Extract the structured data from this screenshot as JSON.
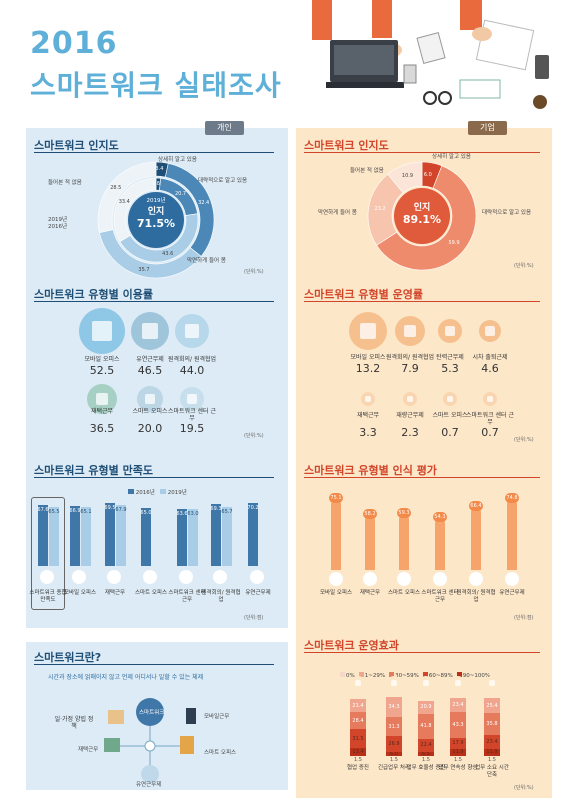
{
  "header": {
    "year": "2016",
    "title": "스마트워크 실태조사"
  },
  "tags": {
    "left": "개인",
    "right": "기업"
  },
  "left": {
    "awareness": {
      "title": "스마트워크 인지도",
      "labels": {
        "detail": "상세히 알고 있음",
        "roughly": "대략적으로 알고 있음",
        "heard": "들어본 적 없음",
        "vaguely": "막연하게 들어 봄",
        "y2019": "2019년",
        "y2016": "2016년"
      },
      "center_year": "2019년",
      "center_word": "인지",
      "center_value": "71.5%",
      "outer": [
        {
          "value": "3.4",
          "pct": 3.4,
          "color": "#1e4d75"
        },
        {
          "value": "32.4",
          "pct": 32.4,
          "color": "#4b88b8"
        },
        {
          "value": "35.7",
          "pct": 35.7,
          "color": "#a9cde6"
        },
        {
          "value": "28.5",
          "pct": 28.5,
          "color": "#eef3f7"
        }
      ],
      "inner": [
        {
          "value": "1.8",
          "pct": 1.8,
          "color": "#1e4d75"
        },
        {
          "value": "20.7",
          "pct": 20.7,
          "color": "#4b88b8"
        },
        {
          "value": "43.6",
          "pct": 43.6,
          "color": "#a9cde6"
        },
        {
          "value": "33.4",
          "pct": 33.4,
          "color": "#eef3f7"
        }
      ],
      "unit": "(단위:%)"
    },
    "usage": {
      "title": "스마트워크 유형별 이용률",
      "items": [
        {
          "label": "모바일 오피스",
          "value": "52.5",
          "icon": "mobile-icon"
        },
        {
          "label": "유연근무제",
          "value": "46.5",
          "icon": "clock-icon"
        },
        {
          "label": "원격회의/ 원격협업",
          "value": "44.0",
          "icon": "meeting-icon"
        },
        {
          "label": "재택근무",
          "value": "36.5",
          "icon": "home-icon"
        },
        {
          "label": "스마트 오피스",
          "value": "20.0",
          "icon": "office-icon"
        },
        {
          "label": "스마트워크 센터 근무",
          "value": "19.5",
          "icon": "center-icon"
        }
      ],
      "unit": "(단위:%)"
    },
    "satisfaction": {
      "title": "스마트워크 유형별 만족도",
      "legend_2016": "2016년",
      "legend_2019": "2019년",
      "unit": "(단위:점)",
      "groups": [
        {
          "label": "스마트워크 종합만족도",
          "v2016": "67.6",
          "v2019": "65.5"
        },
        {
          "label": "모바일 오피스",
          "v2016": "66.9",
          "v2019": "65.1"
        },
        {
          "label": "재택근무",
          "v2016": "69.5",
          "v2019": "67.9"
        },
        {
          "label": "스마트 오피스",
          "v2016": "65.0",
          "v2019": ""
        },
        {
          "label": "스마트워크 센터 근무",
          "v2016": "63.6",
          "v2019": "63.0"
        },
        {
          "label": "원격회의/ 원격협업",
          "v2016": "69.3",
          "v2019": "65.7"
        },
        {
          "label": "유연근무제",
          "v2016": "70.2",
          "v2019": ""
        }
      ]
    },
    "whatis": {
      "title": "스마트워크란?",
      "subtitle": "시간과 장소에 얽매이지 않고 언제 어디서나 일할 수 있는 체제",
      "center": "스마트워크",
      "items": [
        "일·가정 양립 정책",
        "모바일근무",
        "재택근무",
        "스마트 오피스",
        "유연근무제"
      ]
    }
  },
  "right": {
    "awareness": {
      "title": "스마트워크 인지도",
      "labels": {
        "detail": "상세히 알고 있음",
        "heard": "들어본 적 없음",
        "vaguely": "막연하게 들어 봄",
        "roughly": "대략적으로 알고 있음"
      },
      "center_word": "인지",
      "center_value": "89.1%",
      "ring": [
        {
          "value": "6.0",
          "pct": 6.0,
          "color": "#d2452a"
        },
        {
          "value": "59.9",
          "pct": 59.9,
          "color": "#ee8b6c"
        },
        {
          "value": "23.2",
          "pct": 23.2,
          "color": "#f7c5ad"
        },
        {
          "value": "10.9",
          "pct": 10.9,
          "color": "#fbe5d8"
        }
      ],
      "unit": "(단위:%)"
    },
    "operation": {
      "title": "스마트워크 유형별 운영률",
      "items": [
        {
          "label": "모바일 오피스",
          "value": "13.2",
          "icon": "mobile-icon"
        },
        {
          "label": "원격회의/ 원격협업",
          "value": "7.9",
          "icon": "meeting-icon"
        },
        {
          "label": "탄력근무제",
          "value": "5.3",
          "icon": "calendar-icon"
        },
        {
          "label": "시차 출퇴근제",
          "value": "4.6",
          "icon": "schedule-icon"
        },
        {
          "label": "재택근무",
          "value": "3.3",
          "icon": "home-icon"
        },
        {
          "label": "재량근무제",
          "value": "2.3",
          "icon": "desk-icon"
        },
        {
          "label": "스마트 오피스",
          "value": "0.7",
          "icon": "office-icon"
        },
        {
          "label": "스마트워크 센터 근무",
          "value": "0.7",
          "icon": "center-icon"
        }
      ],
      "unit": "(단위:%)"
    },
    "evaluation": {
      "title": "스마트워크 유형별 인식 평가",
      "unit": "(단위:점)",
      "items": [
        {
          "label": "모바일 오피스",
          "value": "75.1",
          "icon": "mobile-icon"
        },
        {
          "label": "재택근무",
          "value": "58.2",
          "icon": "home-icon"
        },
        {
          "label": "스마트 오피스",
          "value": "59.3",
          "icon": "office-icon"
        },
        {
          "label": "스마트워크 센터 근무",
          "value": "54.3",
          "icon": "center-icon"
        },
        {
          "label": "원격회의/ 원격협업",
          "value": "66.4",
          "icon": "meeting-icon"
        },
        {
          "label": "유연근무제",
          "value": "74.8",
          "icon": "clock-icon"
        }
      ]
    },
    "effect": {
      "title": "스마트워크 운영효과",
      "unit": "(단위:%)",
      "legend": [
        "0%",
        "1~29%",
        "30~59%",
        "60~89%",
        "90~100%"
      ],
      "legend_colors": [
        "#f6d7c8",
        "#f0a58e",
        "#e57a5d",
        "#d2452a",
        "#b93018"
      ],
      "items": [
        {
          "label": "협업 증진",
          "icon": "team-icon",
          "bottom": "1.5",
          "values": [
            "21.4",
            "28.4",
            "31.5",
            "13.4"
          ]
        },
        {
          "label": "긴급업무 처리",
          "icon": "alert-icon",
          "bottom": "1.5",
          "values": [
            "34.3",
            "31.3",
            "26.9",
            "6.0"
          ]
        },
        {
          "label": "업무 효율성 증진",
          "icon": "efficiency-icon",
          "bottom": "1.5",
          "values": [
            "20.9",
            "41.8",
            "22.4",
            "6.5"
          ]
        },
        {
          "label": "업무 연속성 향상",
          "icon": "gear-icon",
          "bottom": "1.5",
          "values": [
            "23.4",
            "43.3",
            "17.9",
            "11.9"
          ]
        },
        {
          "label": "업무 소요 시간 단축",
          "icon": "clock-icon",
          "bottom": "1.5",
          "values": [
            "25.4",
            "35.8",
            "23.4",
            "11.9"
          ]
        }
      ]
    }
  }
}
